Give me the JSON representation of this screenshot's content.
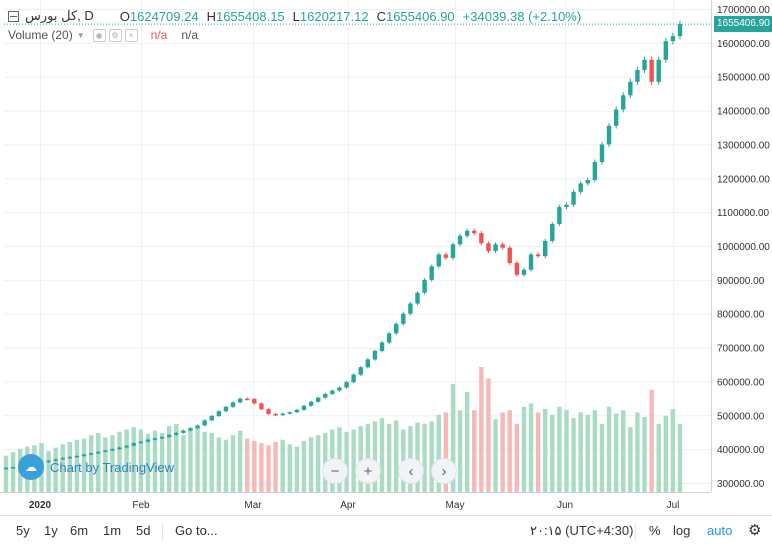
{
  "legend": {
    "symbol": "کل بورس, D",
    "o_label": "O",
    "o_value": "1624709.24",
    "h_label": "H",
    "h_value": "1655408.15",
    "l_label": "L",
    "l_value": "1620217.12",
    "c_label": "C",
    "c_value": "1655406.90",
    "change": "+34039.38 (+2.10%)"
  },
  "volume_legend": {
    "label": "Volume (20)",
    "val1": "n/a",
    "val2": "n/a"
  },
  "watermark": "Chart by TradingView",
  "nav": {
    "zoom_out": "−",
    "zoom_in": "+",
    "scroll_left": "‹",
    "scroll_right": "›"
  },
  "last_price_tag": "1655406.90",
  "toolbar": {
    "range_5y": "5y",
    "range_1y": "1y",
    "range_6m": "6m",
    "range_1m": "1m",
    "range_5d": "5d",
    "goto": "Go to...",
    "time": "۲۰:۱۵ (UTC+4:30)",
    "percent": "%",
    "log": "log",
    "auto": "auto",
    "settings_icon": "gear-icon"
  },
  "colors": {
    "up": "#26a69a",
    "down": "#ef5350",
    "vol_up": "#a9dcc3",
    "vol_down": "#f7b9b7"
  },
  "chart_data": {
    "type": "candlestick",
    "title": "کل بورس, D",
    "y_ticks": [
      "1700000.00",
      "1600000.00",
      "1500000.00",
      "1400000.00",
      "1300000.00",
      "1200000.00",
      "1100000.00",
      "1000000.00",
      "900000.00",
      "800000.00",
      "700000.00",
      "600000.00",
      "500000.00",
      "400000.00",
      "300000.00"
    ],
    "ylim": [
      280000,
      1700000
    ],
    "x_ticks": [
      "2020",
      "Feb",
      "Mar",
      "Apr",
      "May",
      "Jun",
      "Jul"
    ],
    "close": [
      345000,
      347000,
      350000,
      353000,
      357000,
      362000,
      366000,
      370000,
      374000,
      377000,
      380000,
      384000,
      388000,
      392000,
      396000,
      400000,
      405000,
      410000,
      418000,
      422000,
      428000,
      432000,
      436000,
      442000,
      448000,
      455000,
      462000,
      470000,
      485000,
      498000,
      512000,
      525000,
      538000,
      549000,
      548000,
      535000,
      518000,
      504000,
      501000,
      505000,
      509000,
      516000,
      528000,
      540000,
      552000,
      563000,
      573000,
      582000,
      598000,
      620000,
      642000,
      665000,
      690000,
      715000,
      742000,
      770000,
      800000,
      830000,
      862000,
      900000,
      940000,
      975000,
      965000,
      1005000,
      1030000,
      1045000,
      1038000,
      1008000,
      985000,
      1005000,
      995000,
      950000,
      915000,
      930000,
      975000,
      970000,
      1015000,
      1065000,
      1115000,
      1122000,
      1160000,
      1185000,
      1195000,
      1248000,
      1300000,
      1355000,
      1403000,
      1445000,
      1485000,
      1520000,
      1550000,
      1485000,
      1550000,
      1605000,
      1620000,
      1655407
    ],
    "volume": [
      32,
      35,
      38,
      40,
      41,
      43,
      36,
      39,
      42,
      44,
      46,
      47,
      50,
      52,
      48,
      50,
      53,
      55,
      57,
      55,
      51,
      54,
      52,
      58,
      60,
      50,
      55,
      57,
      53,
      52,
      48,
      46,
      50,
      54,
      47,
      45,
      43,
      41,
      44,
      46,
      42,
      40,
      45,
      48,
      50,
      52,
      55,
      57,
      53,
      55,
      58,
      60,
      62,
      65,
      60,
      63,
      55,
      58,
      61,
      60,
      62,
      68,
      70,
      95,
      72,
      88,
      72,
      110,
      100,
      64,
      70,
      72,
      60,
      75,
      78,
      70,
      73,
      68,
      75,
      72,
      65,
      70,
      68,
      72,
      60,
      75,
      69,
      72,
      57,
      70,
      66,
      90,
      60,
      67,
      73,
      60
    ]
  }
}
